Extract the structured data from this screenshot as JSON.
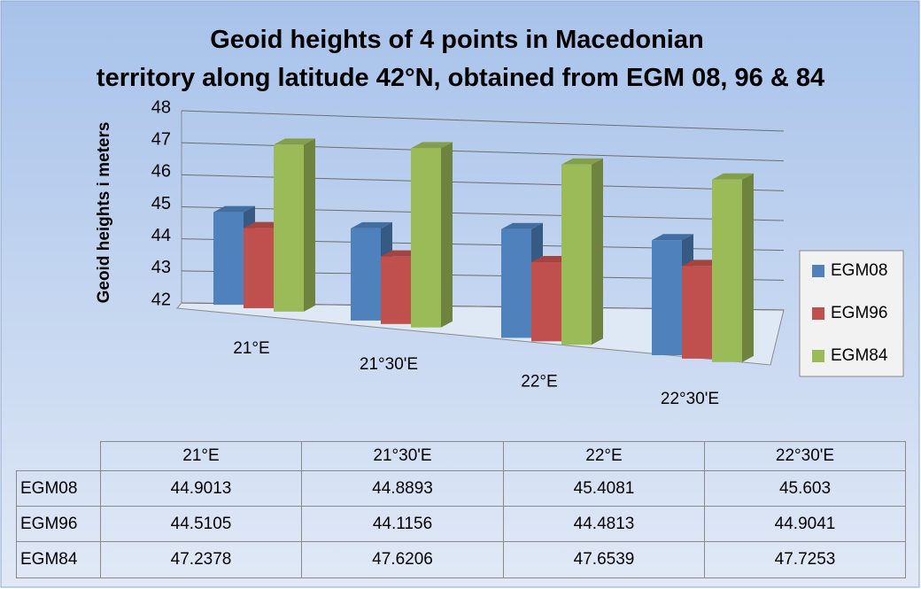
{
  "chart_data": {
    "type": "bar",
    "title": "Geoid heights of 4 points in Macedonian territory along latitude 42°N, obtained from EGM 08, 96 & 84",
    "y_label": "Geoid heights i meters",
    "categories": [
      "21°E",
      "21°30'E",
      "22°E",
      "22°30'E"
    ],
    "series": [
      {
        "name": "EGM08",
        "color": "#4f81bd",
        "values": [
          44.9013,
          44.8893,
          45.4081,
          45.603
        ]
      },
      {
        "name": "EGM96",
        "color": "#c0504d",
        "values": [
          44.5105,
          44.1156,
          44.4813,
          44.9041
        ]
      },
      {
        "name": "EGM84",
        "color": "#9bbb59",
        "values": [
          47.2378,
          47.6206,
          47.6539,
          47.7253
        ]
      }
    ],
    "ylim": [
      42,
      48
    ],
    "yticks": [
      42,
      43,
      44,
      45,
      46,
      47,
      48
    ],
    "grid": true,
    "legend": "right",
    "data_table": true
  }
}
